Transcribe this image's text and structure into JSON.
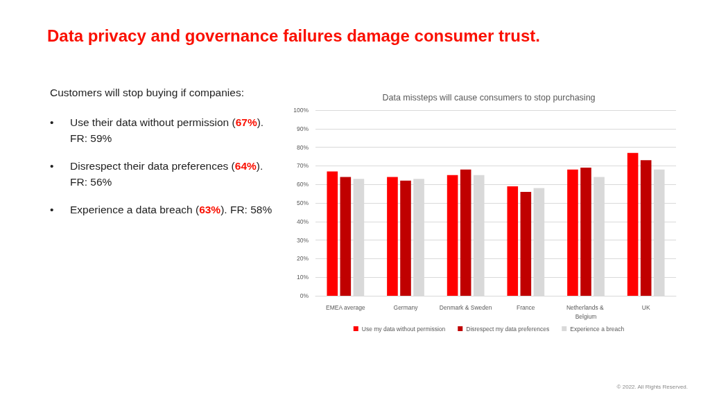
{
  "chart_data": {
    "type": "bar",
    "title": "Data privacy and governance failures damage consumer trust.",
    "subtitle": "Data missteps will cause consumers to stop purchasing",
    "annotations": [
      "Customers will stop buying if companies:",
      "• Use their data without permission (67%). FR: 59%",
      "• Disrespect their data preferences (64%). FR: 56%",
      "• Experience a data breach (63%). FR: 58%",
      "© 2022. All Rights Reserved."
    ],
    "categories": [
      "EMEA average",
      "Germany",
      "Denmark & Sweden",
      "France",
      "Netherlands & Belgium",
      "UK"
    ],
    "series": [
      {
        "name": "Use my data without permission",
        "color": "#ff0000",
        "values": [
          67,
          64,
          65,
          59,
          68,
          77
        ]
      },
      {
        "name": "Disrespect my data preferences",
        "color": "#c00000",
        "values": [
          64,
          62,
          68,
          56,
          69,
          73
        ]
      },
      {
        "name": "Experience a breach",
        "color": "#d9d9d9",
        "values": [
          63,
          63,
          65,
          58,
          64,
          68
        ]
      }
    ],
    "ylim": [
      0,
      100
    ],
    "yticks": [
      {
        "value": 0,
        "label": "0%"
      },
      {
        "value": 10,
        "label": "10%"
      },
      {
        "value": 20,
        "label": "20%"
      },
      {
        "value": 30,
        "label": "30%"
      },
      {
        "value": 40,
        "label": "40%"
      },
      {
        "value": 50,
        "label": "50%"
      },
      {
        "value": 60,
        "label": "60%"
      },
      {
        "value": 70,
        "label": "70%"
      },
      {
        "value": 80,
        "label": "80%"
      },
      {
        "value": 90,
        "label": "90%"
      },
      {
        "value": 100,
        "label": "100%"
      }
    ],
    "grid": "y",
    "legend": "bottom"
  }
}
